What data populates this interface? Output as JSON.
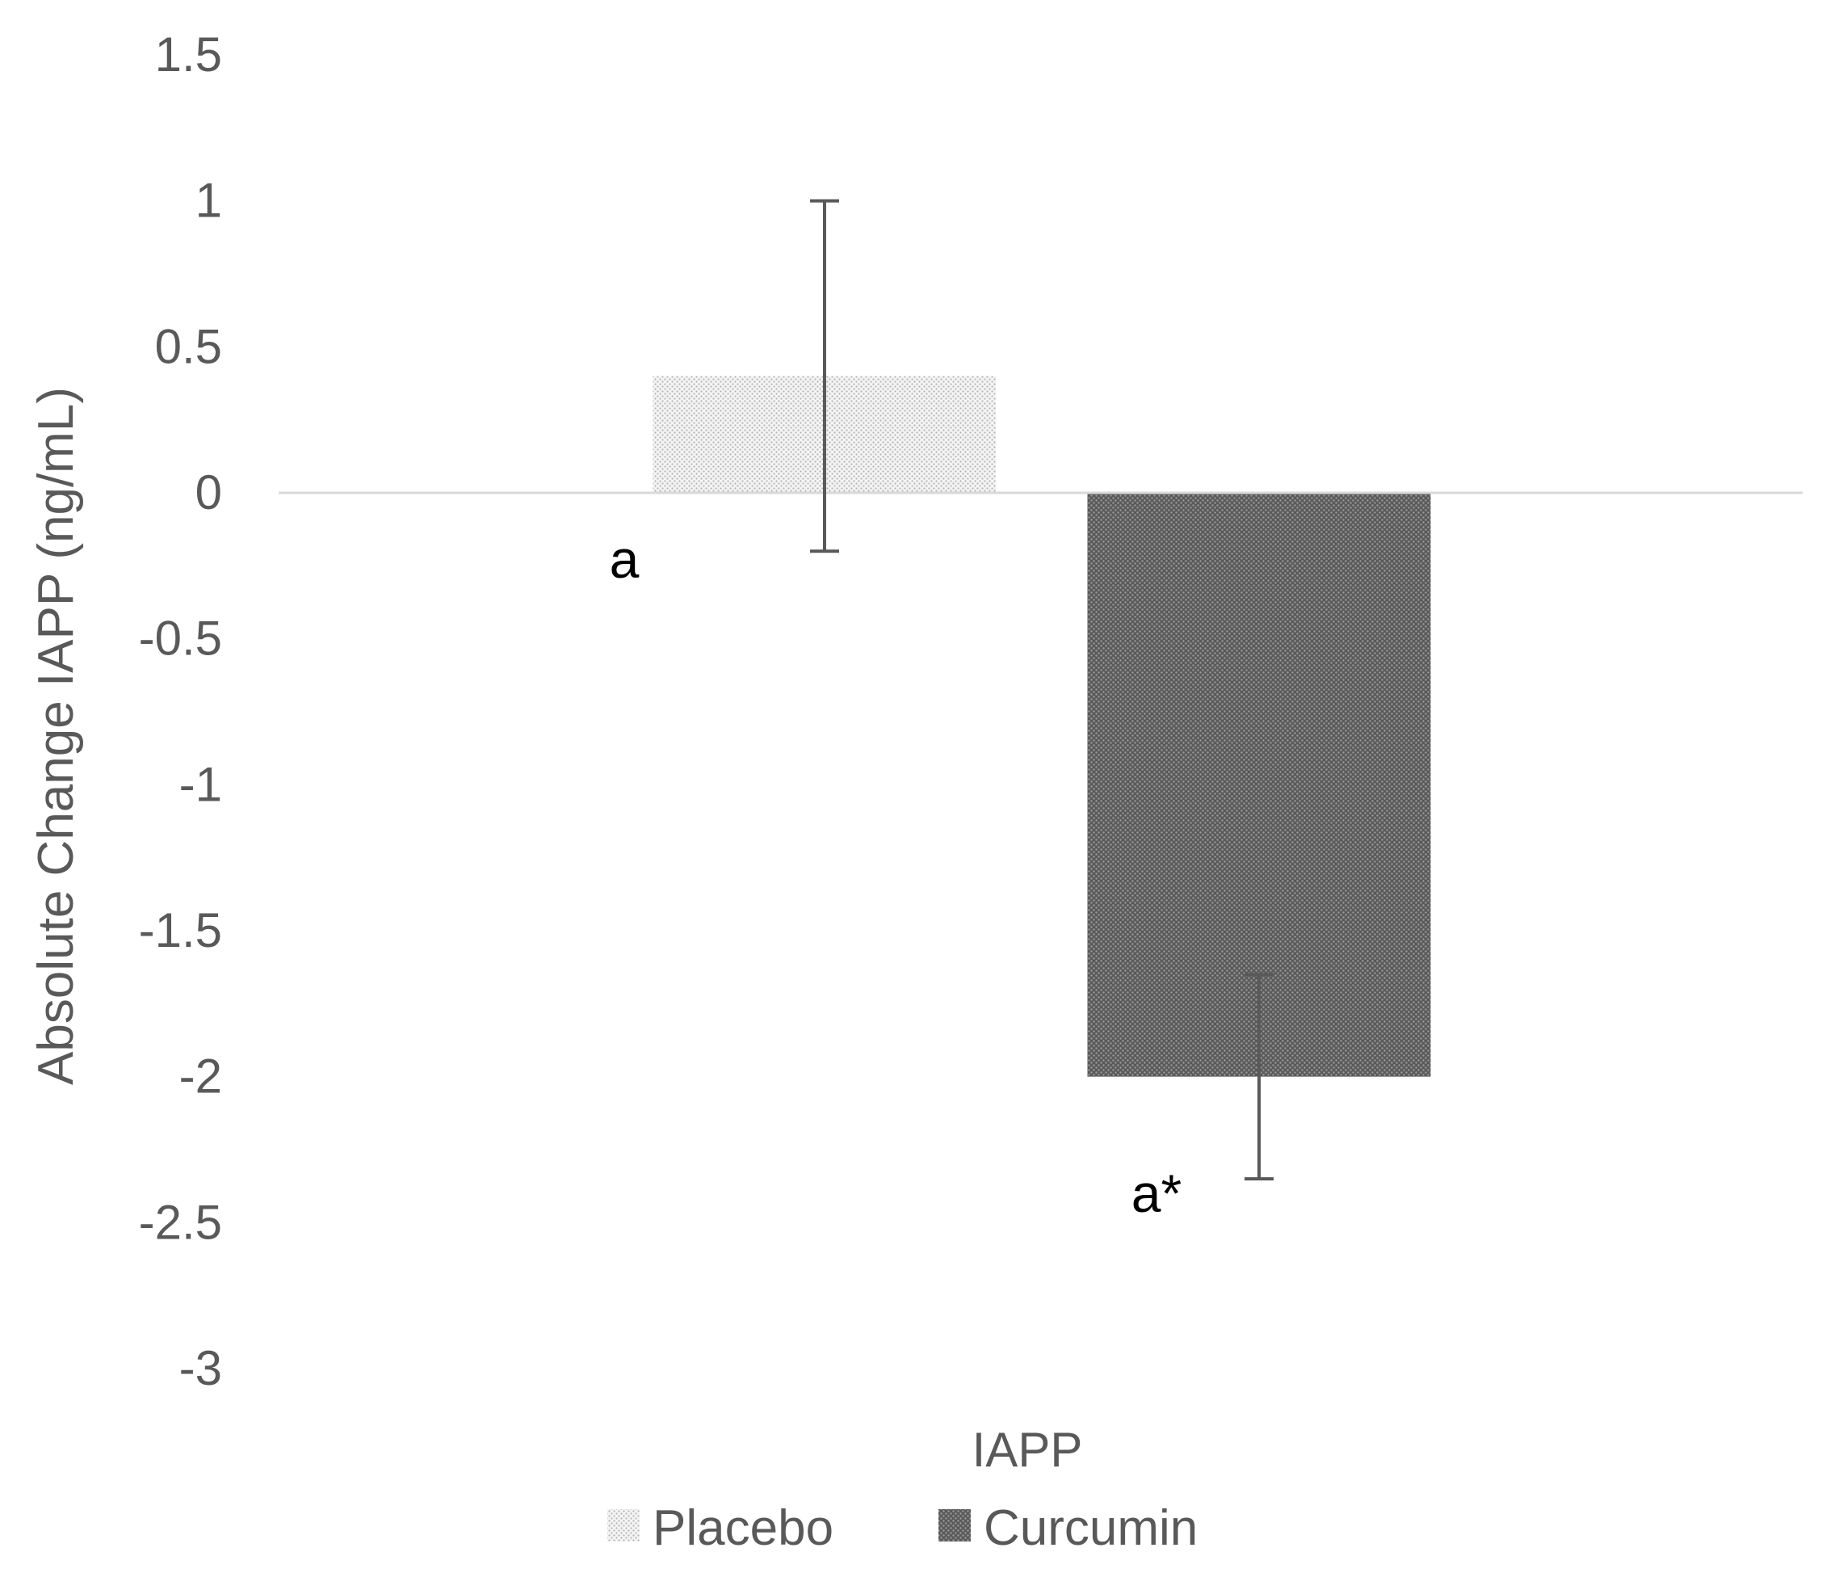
{
  "chart_data": {
    "type": "bar",
    "categories": [
      "IAPP"
    ],
    "series": [
      {
        "name": "Placebo",
        "values": [
          0.4
        ],
        "error_plus": [
          0.6
        ],
        "error_minus": [
          0.6
        ],
        "pattern": "light-dots",
        "color": "#d9d9d9"
      },
      {
        "name": "Curcumin",
        "values": [
          -2.0
        ],
        "error_plus": [
          0.35
        ],
        "error_minus": [
          0.35
        ],
        "pattern": "dark-dots",
        "color": "#6b6b6b"
      }
    ],
    "annotations": [
      "a",
      "a*"
    ],
    "ylabel": "Absolute Change IAPP (ng/mL)",
    "xlabel": "",
    "ylim": [
      -3,
      1.5
    ],
    "yticks": [
      1.5,
      1,
      0.5,
      0,
      -0.5,
      -1,
      -1.5,
      -2,
      -2.5,
      -3
    ],
    "ytick_labels": [
      "1.5",
      "1",
      "0.5",
      "0",
      "-0.5",
      "-1",
      "-1.5",
      "-2",
      "-2.5",
      "-3"
    ],
    "grid": false,
    "legend_position": "bottom",
    "colors": {
      "axis": "#d9d9d9",
      "text": "#595959",
      "error_bar": "#595959"
    }
  }
}
